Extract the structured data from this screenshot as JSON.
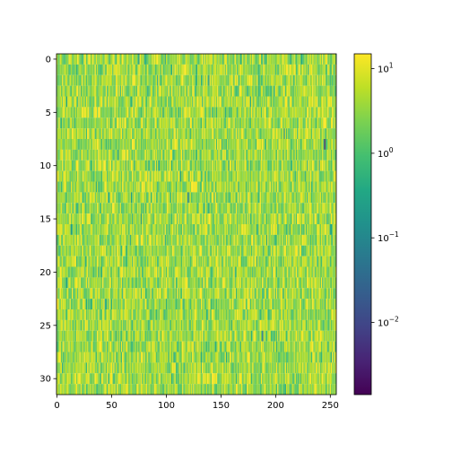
{
  "chart_data": {
    "type": "heatmap",
    "title": "",
    "xlabel": "",
    "ylabel": "",
    "n_rows": 32,
    "n_cols": 256,
    "xlim": [
      -0.5,
      255.5
    ],
    "ylim": [
      31.5,
      -0.5
    ],
    "x_ticks": [
      0,
      50,
      100,
      150,
      200,
      250
    ],
    "x_tick_labels": [
      "0",
      "50",
      "100",
      "150",
      "200",
      "250"
    ],
    "y_ticks": [
      0,
      5,
      10,
      15,
      20,
      25,
      30
    ],
    "y_tick_labels": [
      "0",
      "5",
      "10",
      "15",
      "20",
      "25",
      "30"
    ],
    "colorbar": {
      "scale": "log",
      "colormap": "viridis",
      "vmin": 0.0014,
      "vmax": 15,
      "ticks": [
        10,
        1,
        0.1,
        0.01
      ],
      "tick_base": [
        "10",
        "10",
        "10",
        "10"
      ],
      "tick_exponents": [
        "1",
        "0",
        "−1",
        "−2"
      ]
    },
    "value_distribution": {
      "typical_log10_center": 0.55,
      "typical_log10_spread": 0.35,
      "note_outliers": [
        {
          "row": 8,
          "col": 245,
          "value": 0.002
        },
        {
          "row": 26,
          "col": 188,
          "value": 0.04
        },
        {
          "row": 13,
          "col": 120,
          "value": 0.05
        }
      ]
    },
    "grid": false,
    "legend": "colorbar-right"
  }
}
